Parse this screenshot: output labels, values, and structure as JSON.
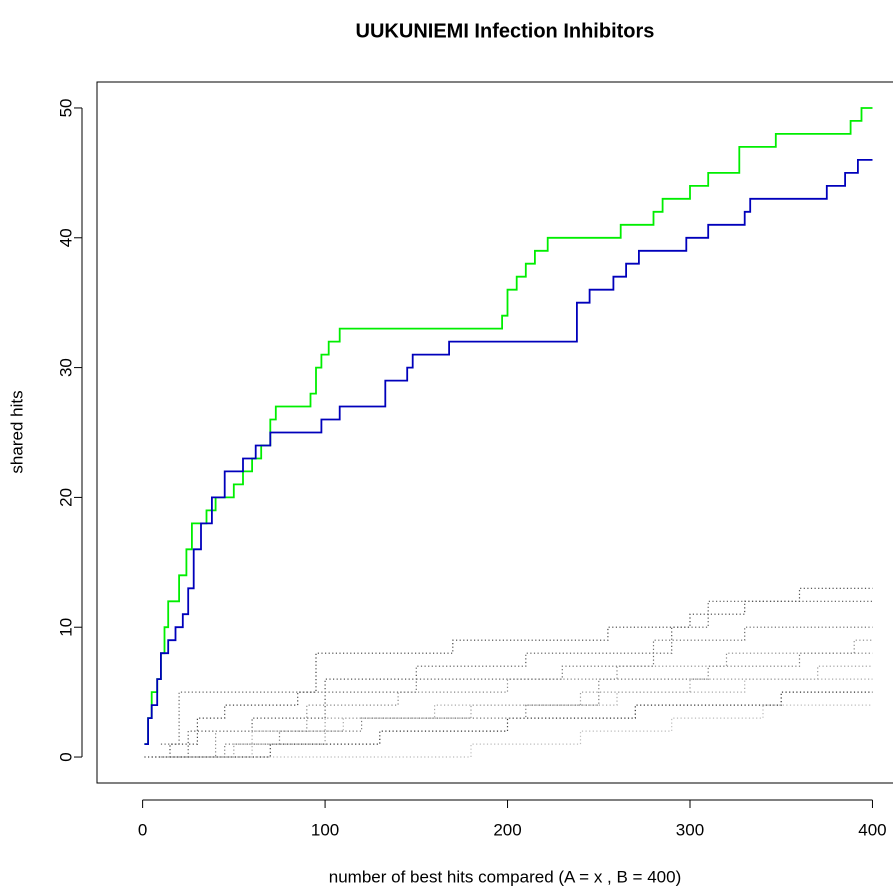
{
  "chart_data": {
    "type": "line",
    "drawstyle": "steps-post",
    "title": "UUKUNIEMI Infection Inhibitors",
    "xlabel": "number of best hits compared (A = x , B = 400)",
    "ylabel": "shared hits",
    "xlim": [
      -25,
      414
    ],
    "ylim": [
      -2,
      52
    ],
    "xticks": [
      0,
      100,
      200,
      300,
      400
    ],
    "yticks": [
      0,
      10,
      20,
      30,
      40,
      50
    ],
    "series": [
      {
        "color": "#00ee00",
        "style": "solid",
        "width": 1.8,
        "x": [
          1,
          3,
          5,
          8,
          10,
          12,
          14,
          20,
          24,
          27,
          35,
          40,
          50,
          55,
          60,
          65,
          70,
          73,
          92,
          95,
          98,
          102,
          108,
          197,
          200,
          205,
          210,
          215,
          222,
          262,
          280,
          285,
          300,
          310,
          327,
          347,
          388,
          394,
          400
        ],
        "values": [
          1,
          3,
          5,
          6,
          8,
          10,
          12,
          14,
          16,
          18,
          19,
          20,
          21,
          22,
          23,
          24,
          26,
          27,
          28,
          30,
          31,
          32,
          33,
          34,
          36,
          37,
          38,
          39,
          40,
          41,
          42,
          43,
          44,
          45,
          47,
          48,
          49,
          50,
          50
        ]
      },
      {
        "color": "#0000bb",
        "style": "solid",
        "width": 1.8,
        "x": [
          1,
          3,
          5,
          8,
          10,
          14,
          18,
          22,
          25,
          28,
          32,
          38,
          45,
          55,
          62,
          70,
          98,
          108,
          133,
          145,
          148,
          168,
          238,
          245,
          258,
          265,
          272,
          298,
          310,
          330,
          333,
          375,
          385,
          392,
          400
        ],
        "values": [
          1,
          3,
          4,
          6,
          8,
          9,
          10,
          11,
          13,
          16,
          18,
          20,
          22,
          23,
          24,
          25,
          26,
          27,
          29,
          30,
          31,
          32,
          35,
          36,
          37,
          38,
          39,
          40,
          41,
          42,
          43,
          44,
          45,
          46,
          46
        ]
      },
      {
        "color": "#444444",
        "style": "dotted",
        "width": 1.2,
        "x": [
          1,
          15,
          30,
          45,
          85,
          95,
          170,
          255,
          300,
          330,
          360,
          400
        ],
        "values": [
          0,
          1,
          3,
          4,
          5,
          8,
          9,
          10,
          11,
          12,
          13,
          13
        ]
      },
      {
        "color": "#555555",
        "style": "dotted",
        "width": 1.2,
        "x": [
          5,
          25,
          60,
          100,
          150,
          210,
          290,
          310,
          390,
          400
        ],
        "values": [
          0,
          2,
          3,
          6,
          7,
          8,
          10,
          12,
          12,
          12
        ]
      },
      {
        "color": "#666666",
        "style": "dotted",
        "width": 1.2,
        "x": [
          10,
          20,
          110,
          150,
          230,
          280,
          330,
          380,
          400
        ],
        "values": [
          1,
          5,
          5,
          6,
          7,
          9,
          10,
          10,
          10
        ]
      },
      {
        "color": "#888888",
        "style": "dotted",
        "width": 1.2,
        "x": [
          5,
          40,
          90,
          140,
          200,
          260,
          320,
          390,
          400
        ],
        "values": [
          0,
          2,
          4,
          5,
          6,
          7,
          8,
          9,
          9
        ]
      },
      {
        "color": "#999999",
        "style": "dotted",
        "width": 1.2,
        "x": [
          10,
          50,
          100,
          180,
          240,
          300,
          370,
          400
        ],
        "values": [
          0,
          1,
          3,
          4,
          5,
          6,
          7,
          7
        ]
      },
      {
        "color": "#333333",
        "style": "dotted",
        "width": 1.2,
        "x": [
          15,
          70,
          130,
          200,
          270,
          350,
          400
        ],
        "values": [
          0,
          1,
          2,
          3,
          4,
          5,
          5
        ]
      },
      {
        "color": "#aaaaaa",
        "style": "dotted",
        "width": 1.2,
        "x": [
          20,
          60,
          110,
          160,
          260,
          330,
          400
        ],
        "values": [
          0,
          2,
          3,
          4,
          5,
          6,
          6
        ]
      },
      {
        "color": "#bbbbbb",
        "style": "dotted",
        "width": 1.2,
        "x": [
          30,
          120,
          180,
          240,
          290,
          340,
          400
        ],
        "values": [
          0,
          0,
          1,
          2,
          3,
          4,
          4
        ]
      },
      {
        "color": "#777777",
        "style": "dotted",
        "width": 1.2,
        "x": [
          5,
          45,
          75,
          120,
          210,
          250,
          310,
          360,
          400
        ],
        "values": [
          0,
          1,
          2,
          3,
          4,
          6,
          7,
          8,
          8
        ]
      }
    ]
  }
}
